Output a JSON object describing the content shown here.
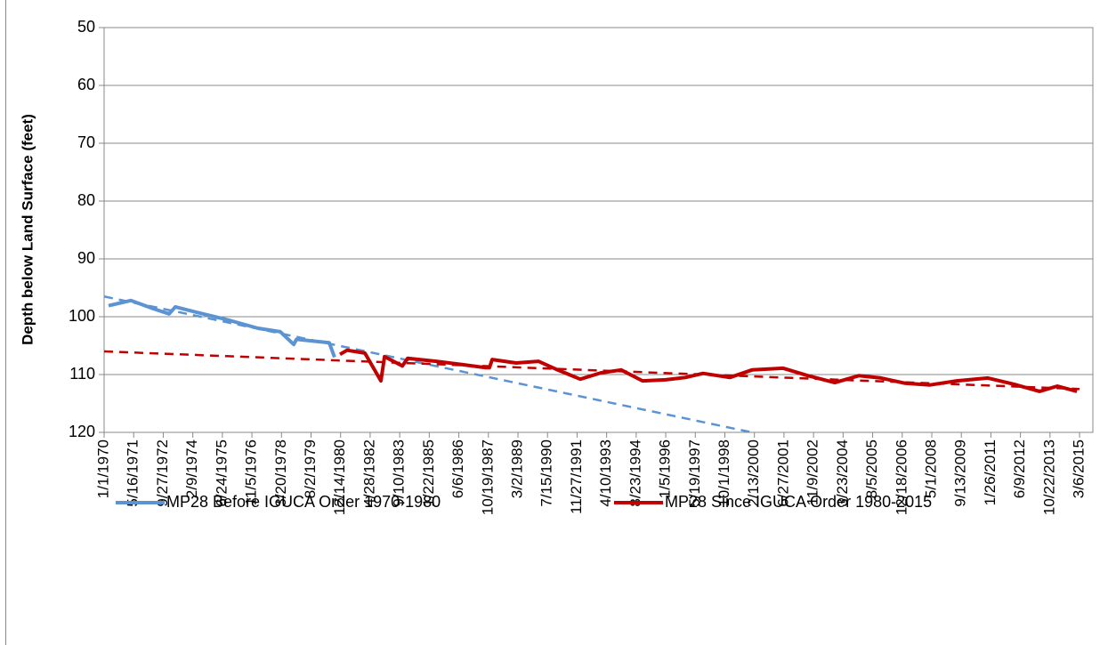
{
  "chart_data": {
    "type": "line",
    "y_label": "Depth below Land Surface (feet)",
    "ylim": [
      50,
      120
    ],
    "yticks": [
      50,
      60,
      70,
      80,
      90,
      100,
      110,
      120
    ],
    "y_reversed": true,
    "grid": true,
    "xlim": [
      "1970-01-01",
      "2015-10-17"
    ],
    "xticks": [
      {
        "value": "1970-01-01",
        "label": "1/1/1970"
      },
      {
        "value": "1971-05-16",
        "label": "5/16/1971"
      },
      {
        "value": "1972-09-27",
        "label": "9/27/1972"
      },
      {
        "value": "1974-02-09",
        "label": "2/9/1974"
      },
      {
        "value": "1975-06-24",
        "label": "6/24/1975"
      },
      {
        "value": "1976-11-05",
        "label": "11/5/1976"
      },
      {
        "value": "1978-03-20",
        "label": "3/20/1978"
      },
      {
        "value": "1979-08-02",
        "label": "8/2/1979"
      },
      {
        "value": "1980-12-14",
        "label": "12/14/1980"
      },
      {
        "value": "1982-04-28",
        "label": "4/28/1982"
      },
      {
        "value": "1983-09-10",
        "label": "9/10/1983"
      },
      {
        "value": "1985-01-22",
        "label": "1/22/1985"
      },
      {
        "value": "1986-06-06",
        "label": "6/6/1986"
      },
      {
        "value": "1987-10-19",
        "label": "10/19/1987"
      },
      {
        "value": "1989-03-02",
        "label": "3/2/1989"
      },
      {
        "value": "1990-07-15",
        "label": "7/15/1990"
      },
      {
        "value": "1991-11-27",
        "label": "11/27/1991"
      },
      {
        "value": "1993-04-10",
        "label": "4/10/1993"
      },
      {
        "value": "1994-08-23",
        "label": "8/23/1994"
      },
      {
        "value": "1996-01-05",
        "label": "1/5/1996"
      },
      {
        "value": "1997-05-19",
        "label": "5/19/1997"
      },
      {
        "value": "1998-10-01",
        "label": "10/1/1998"
      },
      {
        "value": "2000-02-13",
        "label": "2/13/2000"
      },
      {
        "value": "2001-06-27",
        "label": "6/27/2001"
      },
      {
        "value": "2002-11-09",
        "label": "11/9/2002"
      },
      {
        "value": "2004-03-23",
        "label": "3/23/2004"
      },
      {
        "value": "2005-08-05",
        "label": "8/5/2005"
      },
      {
        "value": "2006-12-18",
        "label": "12/18/2006"
      },
      {
        "value": "2008-05-01",
        "label": "5/1/2008"
      },
      {
        "value": "2009-09-13",
        "label": "9/13/2009"
      },
      {
        "value": "2011-01-26",
        "label": "1/26/2011"
      },
      {
        "value": "2012-06-09",
        "label": "6/9/2012"
      },
      {
        "value": "2013-10-22",
        "label": "10/22/2013"
      },
      {
        "value": "2015-03-06",
        "label": "3/6/2015"
      }
    ],
    "legend": "bottom",
    "series": [
      {
        "name": "MP28 Before IGUCA Order 1970-1980",
        "color": "#5b93d3",
        "x": [
          "1970-03-17",
          "1971-03-29",
          "1972-04-08",
          "1973-01-04",
          "1973-04-19",
          "1974-04-01",
          "1975-09-09",
          "1977-02-18",
          "1978-03-01",
          "1978-10-14",
          "1978-11-28",
          "1980-06-05",
          "1980-09-03"
        ],
        "values": [
          98.1,
          97.2,
          98.6,
          99.5,
          98.3,
          99.2,
          100.5,
          102.0,
          102.6,
          104.8,
          103.9,
          104.5,
          107.0
        ]
      },
      {
        "name": "MP28 Since IGUCA Order 1980-2015",
        "color": "#c00000",
        "x": [
          "1980-12-03",
          "1981-04-02",
          "1982-01-29",
          "1982-10-27",
          "1982-12-27",
          "1983-10-24",
          "1984-01-22",
          "1985-05-18",
          "1986-08-11",
          "1987-08-23",
          "1987-11-06",
          "1987-12-21",
          "1989-01-31",
          "1990-02-11",
          "1990-12-10",
          "1992-01-20",
          "1993-01-01",
          "1993-12-13",
          "1994-12-09",
          "1996-01-04",
          "1996-11-30",
          "1997-09-28",
          "1998-12-24",
          "2000-01-04",
          "2001-06-13",
          "2002-08-09",
          "2003-11-04",
          "2004-12-14",
          "2005-12-26",
          "2007-02-06",
          "2008-04-03",
          "2009-06-28",
          "2010-12-06",
          "2012-03-02",
          "2013-04-29",
          "2014-02-24",
          "2015-01-21"
        ],
        "values": [
          106.5,
          105.8,
          106.3,
          111.1,
          106.9,
          108.5,
          107.2,
          107.7,
          108.3,
          108.8,
          108.8,
          107.4,
          108.0,
          107.7,
          109.1,
          110.8,
          109.7,
          109.2,
          111.1,
          110.9,
          110.5,
          109.8,
          110.5,
          109.2,
          108.9,
          110.2,
          111.4,
          110.2,
          110.6,
          111.5,
          111.8,
          111.1,
          110.6,
          111.7,
          112.9,
          112.0,
          112.9
        ]
      }
    ],
    "trendlines": [
      {
        "color": "#5b93d3",
        "dashed": true,
        "x": [
          "1970-01-01",
          "2000-01-04"
        ],
        "values": [
          96.5,
          120
        ]
      },
      {
        "color": "#c00000",
        "dashed": true,
        "x": [
          "1970-01-01",
          "2015-03-06"
        ],
        "values": [
          106.0,
          112.5
        ]
      }
    ]
  }
}
